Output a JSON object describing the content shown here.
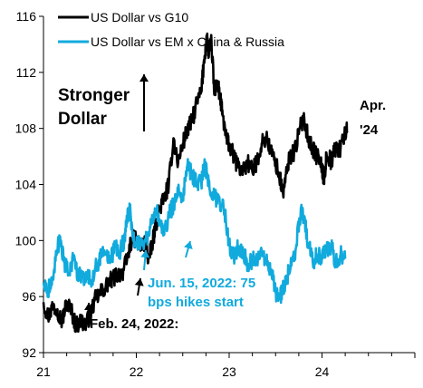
{
  "colors": {
    "g10": "#000000",
    "em": "#11aadd",
    "axis": "#000000"
  },
  "chart_data": {
    "type": "line",
    "title": "",
    "xlabel": "",
    "ylabel": "",
    "xlim": [
      21.0,
      25.0
    ],
    "ylim": [
      92,
      116
    ],
    "x_ticks": [
      21,
      22,
      23,
      24
    ],
    "x_tick_labels": [
      "21",
      "22",
      "23",
      "24"
    ],
    "y_ticks": [
      92,
      96,
      100,
      104,
      108,
      112,
      116
    ],
    "y_tick_labels": [
      "92",
      "96",
      "100",
      "104",
      "108",
      "112",
      "116"
    ],
    "grid": false,
    "legend_position": "top-left",
    "series": [
      {
        "name": "US Dollar vs G10",
        "color": "#000000",
        "points": [
          [
            21.0,
            95.6
          ],
          [
            21.05,
            94.6
          ],
          [
            21.1,
            95.3
          ],
          [
            21.15,
            95.1
          ],
          [
            21.2,
            94.2
          ],
          [
            21.25,
            95.6
          ],
          [
            21.3,
            95.0
          ],
          [
            21.35,
            93.9
          ],
          [
            21.4,
            94.3
          ],
          [
            21.45,
            94.0
          ],
          [
            21.5,
            94.6
          ],
          [
            21.55,
            95.7
          ],
          [
            21.6,
            96.2
          ],
          [
            21.65,
            96.5
          ],
          [
            21.7,
            97.0
          ],
          [
            21.75,
            97.3
          ],
          [
            21.8,
            97.6
          ],
          [
            21.85,
            97.7
          ],
          [
            21.9,
            98.6
          ],
          [
            21.95,
            100.1
          ],
          [
            22.0,
            100.1
          ],
          [
            22.05,
            99.5
          ],
          [
            22.1,
            99.9
          ],
          [
            22.13,
            98.6
          ],
          [
            22.17,
            99.6
          ],
          [
            22.2,
            100.8
          ],
          [
            22.25,
            102.3
          ],
          [
            22.3,
            103.0
          ],
          [
            22.35,
            104.0
          ],
          [
            22.4,
            107.3
          ],
          [
            22.45,
            105.5
          ],
          [
            22.5,
            106.9
          ],
          [
            22.55,
            107.9
          ],
          [
            22.6,
            108.5
          ],
          [
            22.65,
            109.8
          ],
          [
            22.7,
            110.6
          ],
          [
            22.73,
            112.9
          ],
          [
            22.76,
            114.6
          ],
          [
            22.78,
            113.1
          ],
          [
            22.81,
            114.2
          ],
          [
            22.84,
            110.4
          ],
          [
            22.87,
            111.4
          ],
          [
            22.9,
            110.3
          ],
          [
            22.93,
            108.9
          ],
          [
            22.97,
            107.3
          ],
          [
            23.0,
            106.8
          ],
          [
            23.05,
            106.0
          ],
          [
            23.1,
            105.2
          ],
          [
            23.15,
            105.0
          ],
          [
            23.2,
            105.6
          ],
          [
            23.25,
            104.9
          ],
          [
            23.3,
            105.7
          ],
          [
            23.35,
            106.9
          ],
          [
            23.4,
            107.4
          ],
          [
            23.45,
            106.3
          ],
          [
            23.5,
            105.6
          ],
          [
            23.55,
            104.3
          ],
          [
            23.58,
            103.4
          ],
          [
            23.62,
            104.8
          ],
          [
            23.65,
            106.0
          ],
          [
            23.7,
            106.3
          ],
          [
            23.75,
            107.6
          ],
          [
            23.8,
            108.9
          ],
          [
            23.85,
            107.4
          ],
          [
            23.9,
            106.5
          ],
          [
            23.95,
            106.0
          ],
          [
            24.0,
            105.2
          ],
          [
            24.02,
            104.3
          ],
          [
            24.05,
            106.1
          ],
          [
            24.1,
            105.7
          ],
          [
            24.15,
            106.6
          ],
          [
            24.2,
            106.6
          ],
          [
            24.25,
            107.7
          ],
          [
            24.27,
            107.8
          ]
        ]
      },
      {
        "name": "US Dollar vs EM x China & Russia",
        "color": "#11aadd",
        "points": [
          [
            21.0,
            97.0
          ],
          [
            21.05,
            96.5
          ],
          [
            21.1,
            97.4
          ],
          [
            21.15,
            99.3
          ],
          [
            21.18,
            100.3
          ],
          [
            21.22,
            98.5
          ],
          [
            21.27,
            97.6
          ],
          [
            21.32,
            98.6
          ],
          [
            21.37,
            97.7
          ],
          [
            21.42,
            97.4
          ],
          [
            21.47,
            97.5
          ],
          [
            21.52,
            97.1
          ],
          [
            21.57,
            98.2
          ],
          [
            21.62,
            98.9
          ],
          [
            21.67,
            99.1
          ],
          [
            21.72,
            98.5
          ],
          [
            21.77,
            99.5
          ],
          [
            21.82,
            99.1
          ],
          [
            21.87,
            100.1
          ],
          [
            21.9,
            101.5
          ],
          [
            21.93,
            102.2
          ],
          [
            21.97,
            100.2
          ],
          [
            22.0,
            99.6
          ],
          [
            22.05,
            99.8
          ],
          [
            22.1,
            100.0
          ],
          [
            22.15,
            100.9
          ],
          [
            22.2,
            102.3
          ],
          [
            22.25,
            101.5
          ],
          [
            22.3,
            100.4
          ],
          [
            22.35,
            101.8
          ],
          [
            22.4,
            102.6
          ],
          [
            22.45,
            103.4
          ],
          [
            22.5,
            103.1
          ],
          [
            22.55,
            105.4
          ],
          [
            22.6,
            104.6
          ],
          [
            22.65,
            104.2
          ],
          [
            22.7,
            104.1
          ],
          [
            22.73,
            105.4
          ],
          [
            22.76,
            104.7
          ],
          [
            22.8,
            103.4
          ],
          [
            22.85,
            103.0
          ],
          [
            22.9,
            102.6
          ],
          [
            22.95,
            102.2
          ],
          [
            23.0,
            99.7
          ],
          [
            23.05,
            98.8
          ],
          [
            23.1,
            99.6
          ],
          [
            23.15,
            99.3
          ],
          [
            23.2,
            98.2
          ],
          [
            23.25,
            98.7
          ],
          [
            23.3,
            98.8
          ],
          [
            23.35,
            99.3
          ],
          [
            23.4,
            98.4
          ],
          [
            23.45,
            97.9
          ],
          [
            23.5,
            96.3
          ],
          [
            23.53,
            95.7
          ],
          [
            23.57,
            96.4
          ],
          [
            23.62,
            97.4
          ],
          [
            23.67,
            98.2
          ],
          [
            23.72,
            99.5
          ],
          [
            23.77,
            102.0
          ],
          [
            23.8,
            101.8
          ],
          [
            23.85,
            99.8
          ],
          [
            23.9,
            98.5
          ],
          [
            23.95,
            99.0
          ],
          [
            24.0,
            98.9
          ],
          [
            24.05,
            99.5
          ],
          [
            24.1,
            99.6
          ],
          [
            24.15,
            98.5
          ],
          [
            24.2,
            99.0
          ],
          [
            24.25,
            98.7
          ]
        ]
      }
    ],
    "annotations": {
      "stronger_dollar": [
        "Stronger",
        "Dollar"
      ],
      "apr24": [
        "Apr.",
        "'24"
      ],
      "feb24": "Feb. 24, 2022:",
      "jun15": [
        "Jun. 15, 2022: 75",
        "bps hikes start"
      ]
    }
  }
}
